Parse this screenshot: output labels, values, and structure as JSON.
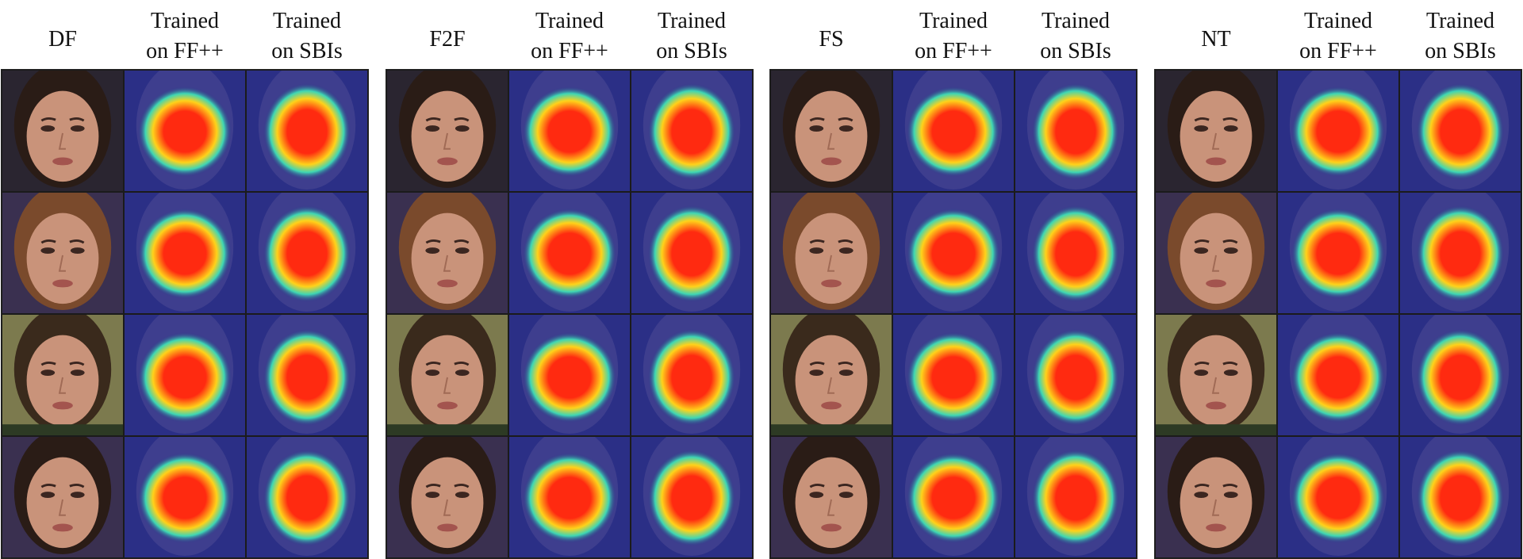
{
  "panels": [
    {
      "method": "DF",
      "col1": "Trained\non FF++",
      "col2": "Trained\non SBIs"
    },
    {
      "method": "F2F",
      "col1": "Trained\non FF++",
      "col2": "Trained\non SBIs"
    },
    {
      "method": "FS",
      "col1": "Trained\non FF++",
      "col2": "Trained\non SBIs"
    },
    {
      "method": "NT",
      "col1": "Trained\non FF++",
      "col2": "Trained\non SBIs"
    }
  ],
  "colors": {
    "heat_bg": "#2b2f86",
    "heat_hot": "#ff2a10",
    "heat_warm": "#ffd21a",
    "heat_cool": "#3ed6b4",
    "skin": "#c9937a",
    "hair_dark": "#2a1c16",
    "hair_brown": "#7a4a2c"
  }
}
